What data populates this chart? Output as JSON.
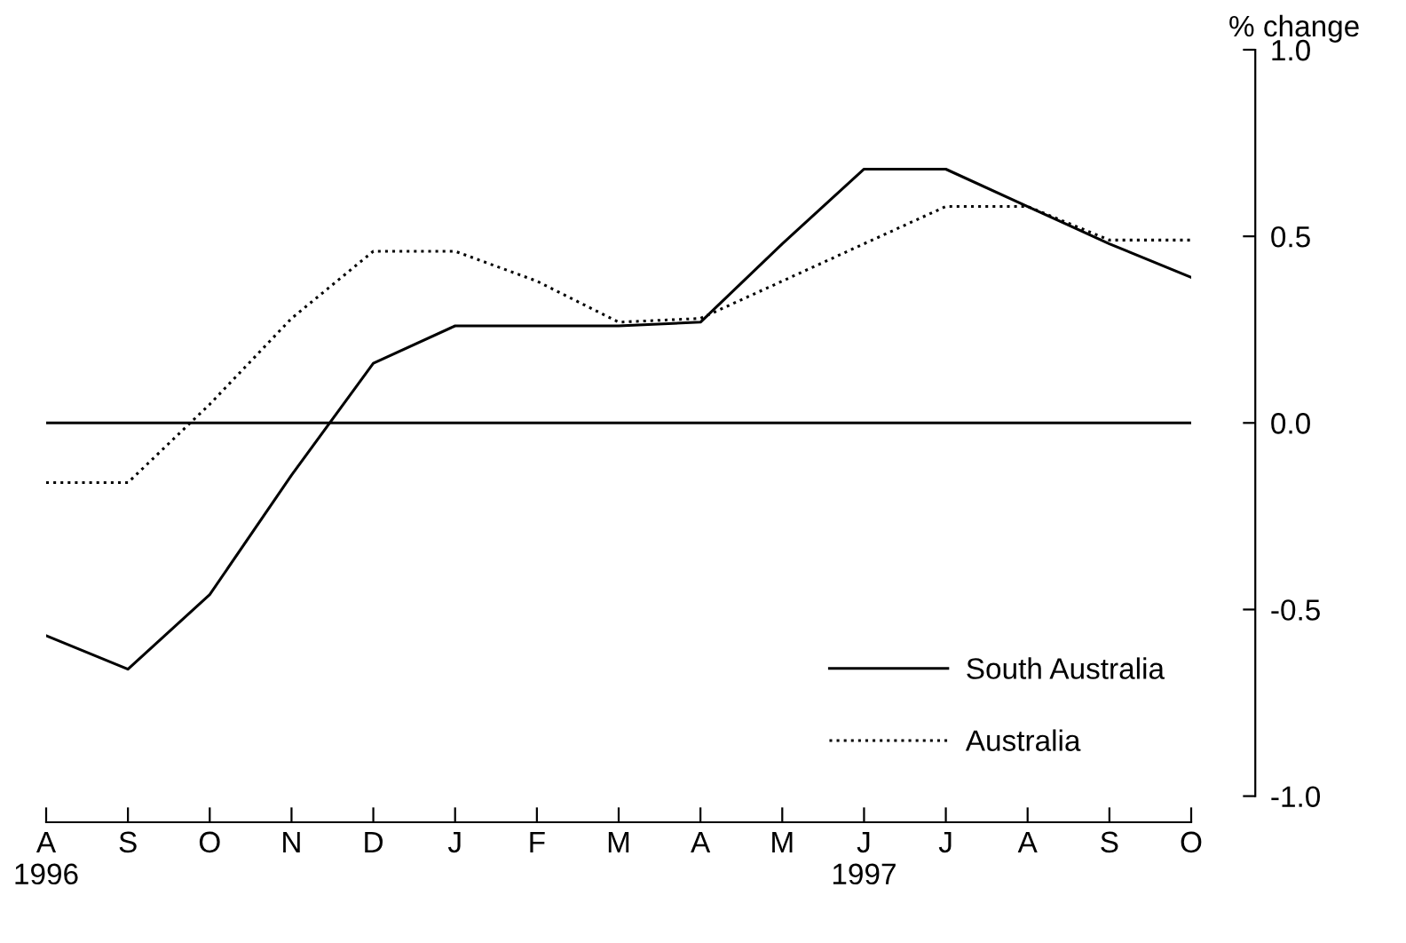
{
  "chart_data": {
    "type": "line",
    "ylabel": "% change",
    "categories": [
      "A\n1996",
      "S",
      "O",
      "N",
      "D",
      "J",
      "F",
      "M",
      "A",
      "M",
      "J\n1997",
      "J",
      "A",
      "S",
      "O"
    ],
    "series": [
      {
        "name": "South Australia",
        "color": "#000000",
        "line_style": "solid",
        "values": [
          -0.57,
          -0.66,
          -0.46,
          -0.14,
          0.16,
          0.26,
          0.26,
          0.26,
          0.27,
          0.48,
          0.68,
          0.68,
          0.58,
          0.48,
          0.39
        ]
      },
      {
        "name": "Australia",
        "color": "#000000",
        "line_style": "dotted",
        "values": [
          -0.16,
          -0.16,
          0.05,
          0.28,
          0.46,
          0.46,
          0.38,
          0.27,
          0.28,
          0.38,
          0.48,
          0.58,
          0.58,
          0.49,
          0.49
        ]
      }
    ],
    "ylim": [
      -1.07,
      1.0
    ],
    "yticks": [
      {
        "value": -1.0,
        "label": "-1.0"
      },
      {
        "value": -0.5,
        "label": "-0.5"
      },
      {
        "value": 0.0,
        "label": "0.0"
      },
      {
        "value": 0.5,
        "label": "0.5"
      },
      {
        "value": 1.0,
        "label": "1.0"
      }
    ],
    "ref_lines": [
      {
        "axis": "y",
        "value": 0,
        "color": "#000000",
        "line_style": "solid"
      }
    ],
    "grid": false,
    "legend": "bottom right",
    "marker": "none"
  }
}
